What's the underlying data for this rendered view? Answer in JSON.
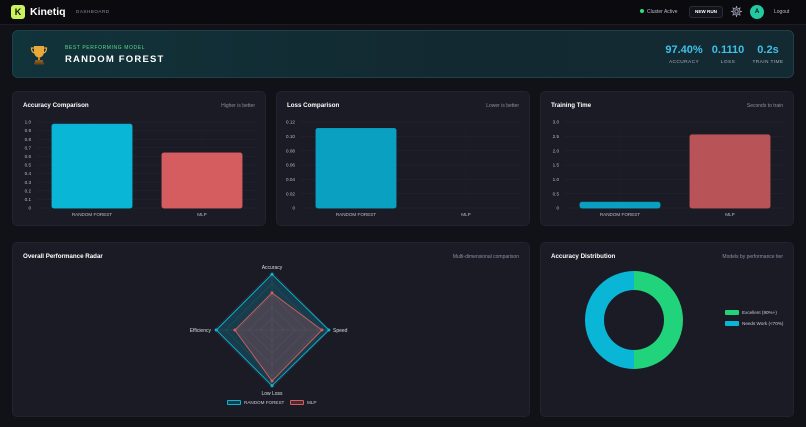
{
  "nav": {
    "logo_letter": "K",
    "brand": "Kinetiq",
    "dashboard_label": "DASHBOARD",
    "cluster_status": "Cluster Active",
    "new_run_label": "NEW RUN",
    "avatar_letter": "A",
    "logout_label": "Logout",
    "icons": [
      "gear-icon"
    ]
  },
  "hero": {
    "eyebrow": "BEST PERFORMING MODEL",
    "model_name": "RANDOM FOREST",
    "icon": "trophy-icon",
    "metrics": [
      {
        "value": "97.40%",
        "label": "ACCURACY"
      },
      {
        "value": "0.1110",
        "label": "LOSS"
      },
      {
        "value": "0.2s",
        "label": "TRAIN TIME"
      }
    ]
  },
  "accuracy_card": {
    "title": "Accuracy Comparison",
    "subtitle": "Higher is better"
  },
  "loss_card": {
    "title": "Loss Comparison",
    "subtitle": "Lower is better"
  },
  "time_card": {
    "title": "Training Time",
    "subtitle": "Seconds to train"
  },
  "radar_card": {
    "title": "Overall Performance Radar",
    "subtitle": "Multi-dimensional comparison"
  },
  "dist_card": {
    "title": "Accuracy Distribution",
    "subtitle": "Models by performance tier"
  },
  "colors": {
    "cyan": "#0ab6d6",
    "red": "#d65d5f",
    "green": "#21d37a",
    "accent": "#3ec0e8"
  },
  "chart_data": [
    {
      "type": "bar",
      "categories": [
        "RANDOM FOREST",
        "MLP"
      ],
      "values": [
        0.974,
        0.64
      ],
      "yticks": [
        "0",
        "0.1",
        "0.2",
        "0.3",
        "0.4",
        "0.5",
        "0.6",
        "0.7",
        "0.8",
        "0.9",
        "1.0"
      ],
      "ylim": [
        0,
        1.0
      ],
      "colors": [
        "#0ab6d6",
        "#d65d5f"
      ]
    },
    {
      "type": "bar",
      "categories": [
        "RANDOM FOREST",
        "MLP"
      ],
      "values": [
        0.111,
        0
      ],
      "yticks": [
        "0",
        "0.02",
        "0.04",
        "0.06",
        "0.08",
        "0.10",
        "0.12"
      ],
      "ylim": [
        0,
        0.12
      ],
      "colors": [
        "#0aa0c2",
        "#d65d5f"
      ]
    },
    {
      "type": "bar",
      "categories": [
        "RANDOM FOREST",
        "MLP"
      ],
      "values": [
        0.2,
        2.55
      ],
      "yticks": [
        "0",
        "0.5",
        "1.0",
        "1.5",
        "2.0",
        "2.5",
        "3.0"
      ],
      "ylim": [
        0,
        3.0
      ],
      "colors": [
        "#0aa0c2",
        "#b85357"
      ]
    },
    {
      "type": "radar",
      "axes": [
        "Accuracy",
        "Speed",
        "Low Loss",
        "Efficiency"
      ],
      "series": [
        {
          "name": "RANDOM FOREST",
          "values": [
            0.96,
            0.98,
            0.96,
            0.96
          ]
        },
        {
          "name": "MLP",
          "values": [
            0.64,
            0.86,
            0.88,
            0.64
          ]
        }
      ],
      "max": 1.0,
      "colors": [
        "#0ab6d6",
        "#d65d5f"
      ]
    },
    {
      "type": "pie",
      "labels": [
        "Excellent (90%+)",
        "Needs Work (<70%)"
      ],
      "values": [
        1,
        1
      ],
      "colors": [
        "#21d37a",
        "#0ab6d6"
      ]
    }
  ]
}
